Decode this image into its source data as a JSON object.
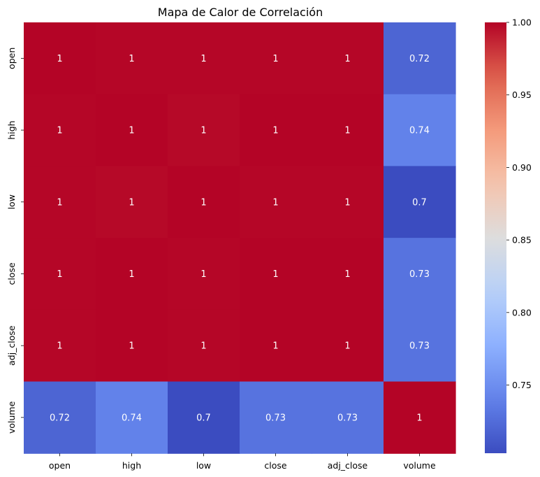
{
  "chart_data": {
    "type": "heatmap",
    "title": "Mapa de Calor de Correlación",
    "xlabel": "",
    "ylabel": "",
    "x_categories": [
      "open",
      "high",
      "low",
      "close",
      "adj_close",
      "volume"
    ],
    "y_categories": [
      "open",
      "high",
      "low",
      "close",
      "adj_close",
      "volume"
    ],
    "values": [
      [
        1.0,
        0.999,
        0.999,
        0.999,
        0.999,
        0.72
      ],
      [
        0.999,
        1.0,
        0.998,
        1.0,
        1.0,
        0.74
      ],
      [
        0.999,
        0.998,
        1.0,
        0.999,
        0.999,
        0.7
      ],
      [
        0.999,
        1.0,
        0.999,
        1.0,
        1.0,
        0.73
      ],
      [
        0.999,
        1.0,
        0.999,
        1.0,
        1.0,
        0.73
      ],
      [
        0.72,
        0.74,
        0.7,
        0.73,
        0.73,
        1.0
      ]
    ],
    "annotations": [
      [
        "1",
        "1",
        "1",
        "1",
        "1",
        "0.72"
      ],
      [
        "1",
        "1",
        "1",
        "1",
        "1",
        "0.74"
      ],
      [
        "1",
        "1",
        "1",
        "1",
        "1",
        "0.7"
      ],
      [
        "1",
        "1",
        "1",
        "1",
        "1",
        "0.73"
      ],
      [
        "1",
        "1",
        "1",
        "1",
        "1",
        "0.73"
      ],
      [
        "0.72",
        "0.74",
        "0.7",
        "0.73",
        "0.73",
        "1"
      ]
    ],
    "colormap": "coolwarm",
    "vmin": 0.703,
    "vmax": 1.0,
    "colorbar_ticks": [
      {
        "value": 0.75,
        "label": "0.75"
      },
      {
        "value": 0.8,
        "label": "0.80"
      },
      {
        "value": 0.85,
        "label": "0.85"
      },
      {
        "value": 0.9,
        "label": "0.90"
      },
      {
        "value": 0.95,
        "label": "0.95"
      },
      {
        "value": 1.0,
        "label": "1.00"
      }
    ],
    "grid": false,
    "legend": "colorbar-right"
  }
}
